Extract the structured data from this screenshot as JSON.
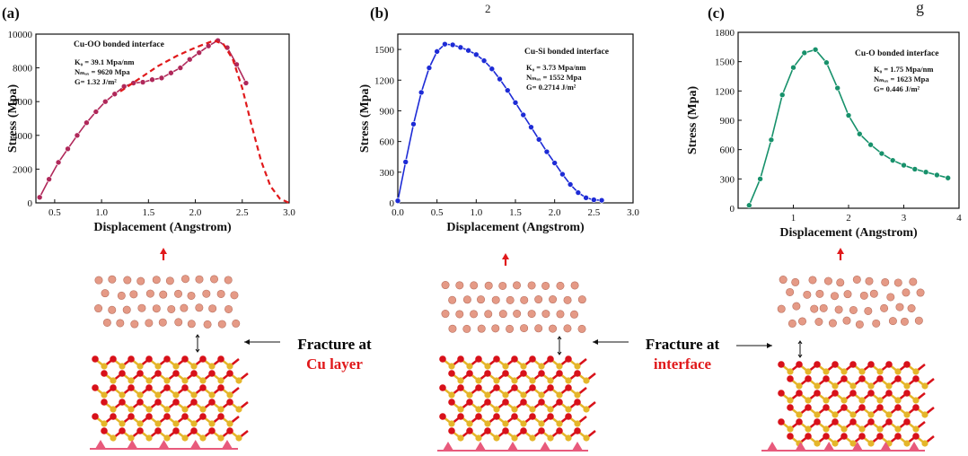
{
  "top_fragment": "2",
  "top_fragment_right": "g",
  "chart_data": [
    {
      "type": "line",
      "panel": "(a)",
      "title": "Cu-OO bonded interface",
      "params": [
        "K₀ = 39.1 Mpa/nm",
        "Nₘₐₓ = 9620 Mpa",
        "G= 1.32 J/m²"
      ],
      "xlabel": "Displacement (Angstrom)",
      "ylabel": "Stress (Mpa)",
      "xlim": [
        0.3,
        3.0
      ],
      "ylim": [
        0,
        10000
      ],
      "xticks": [
        "0.5",
        "1.0",
        "1.5",
        "2.0",
        "2.5",
        "3.0"
      ],
      "xtick_values": [
        0.5,
        1.0,
        1.5,
        2.0,
        2.5,
        3.0
      ],
      "yticks": [
        "0",
        "2000",
        "4000",
        "6000",
        "8000",
        "10000"
      ],
      "ytick_values": [
        0,
        2000,
        4000,
        6000,
        8000,
        10000
      ],
      "color": "#b0285a",
      "series": [
        {
          "style": "solid-markers",
          "x": [
            0.34,
            0.44,
            0.54,
            0.64,
            0.74,
            0.84,
            0.94,
            1.04,
            1.14,
            1.24,
            1.34,
            1.44,
            1.54,
            1.64,
            1.74,
            1.84,
            1.94,
            2.04,
            2.14,
            2.24,
            2.34,
            2.44,
            2.54
          ],
          "y": [
            330,
            1400,
            2400,
            3200,
            4000,
            4750,
            5400,
            6000,
            6450,
            6900,
            7100,
            7150,
            7300,
            7400,
            7700,
            8000,
            8500,
            8900,
            9300,
            9620,
            9200,
            8200,
            7100
          ]
        },
        {
          "style": "dashed",
          "x": [
            1.2,
            1.4,
            1.6,
            1.8,
            2.0,
            2.2,
            2.3,
            2.4,
            2.5,
            2.6,
            2.7,
            2.8,
            2.9,
            3.0
          ],
          "y": [
            6600,
            7350,
            8100,
            8700,
            9200,
            9620,
            9400,
            8500,
            6800,
            4600,
            2500,
            1000,
            250,
            0
          ]
        }
      ]
    },
    {
      "type": "line",
      "panel": "(b)",
      "title": "Cu-Si bonded interface",
      "params": [
        "K₀ = 3.73 Mpa/nm",
        "Nₘₐₓ = 1552 Mpa",
        "G= 0.2714 J/m²"
      ],
      "xlabel": "Displacement (Angstrom)",
      "ylabel": "Stress (Mpa)",
      "xlim": [
        0.0,
        3.0
      ],
      "ylim": [
        0,
        1650
      ],
      "xticks": [
        "0.0",
        "0.5",
        "1.0",
        "1.5",
        "2.0",
        "2.5",
        "3.0"
      ],
      "xtick_values": [
        0.0,
        0.5,
        1.0,
        1.5,
        2.0,
        2.5,
        3.0
      ],
      "yticks": [
        "0",
        "300",
        "600",
        "900",
        "1200",
        "1500"
      ],
      "ytick_values": [
        0,
        300,
        600,
        900,
        1200,
        1500
      ],
      "color": "#1d2bd6",
      "series": [
        {
          "style": "solid-markers",
          "x": [
            0.0,
            0.1,
            0.2,
            0.3,
            0.4,
            0.5,
            0.6,
            0.7,
            0.8,
            0.9,
            1.0,
            1.1,
            1.2,
            1.3,
            1.4,
            1.5,
            1.6,
            1.7,
            1.8,
            1.9,
            2.0,
            2.1,
            2.2,
            2.3,
            2.4,
            2.5,
            2.6
          ],
          "y": [
            20,
            400,
            770,
            1080,
            1320,
            1480,
            1552,
            1545,
            1520,
            1490,
            1450,
            1390,
            1310,
            1210,
            1100,
            980,
            860,
            740,
            620,
            500,
            390,
            280,
            180,
            100,
            50,
            30,
            25
          ]
        }
      ]
    },
    {
      "type": "line",
      "panel": "(c)",
      "title": "Cu-O bonded interface",
      "params": [
        "K₀ = 1.75 Mpa/nm",
        "Nₘₐₓ = 1623 Mpa",
        "G= 0.446 J/m²"
      ],
      "xlabel": "Displacement (Angstrom)",
      "ylabel": "Stress (Mpa)",
      "xlim": [
        0.0,
        4.0
      ],
      "ylim": [
        0,
        1800
      ],
      "xticks": [
        "1",
        "2",
        "3",
        "4"
      ],
      "xtick_values": [
        1,
        2,
        3,
        4
      ],
      "yticks": [
        "0",
        "300",
        "600",
        "900",
        "1200",
        "1500",
        "1800"
      ],
      "ytick_values": [
        0,
        300,
        600,
        900,
        1200,
        1500,
        1800
      ],
      "color": "#17916b",
      "series": [
        {
          "style": "solid-markers",
          "x": [
            0.2,
            0.4,
            0.6,
            0.8,
            1.0,
            1.2,
            1.4,
            1.6,
            1.8,
            2.0,
            2.2,
            2.4,
            2.6,
            2.8,
            3.0,
            3.2,
            3.4,
            3.6,
            3.8
          ],
          "y": [
            30,
            300,
            700,
            1160,
            1440,
            1590,
            1623,
            1490,
            1230,
            950,
            760,
            650,
            560,
            490,
            440,
            400,
            370,
            340,
            310
          ]
        }
      ]
    }
  ],
  "fracture_labels": [
    {
      "line1": "Fracture at",
      "line2": "Cu layer"
    },
    {
      "line1": "Fracture at",
      "line2": "interface"
    }
  ],
  "colors": {
    "cu_atom": "#e59a86",
    "o_atom": "#d8111a",
    "si_atom": "#e5b62a",
    "substrate": "#e85a7c",
    "arrow": "#e0191b"
  }
}
